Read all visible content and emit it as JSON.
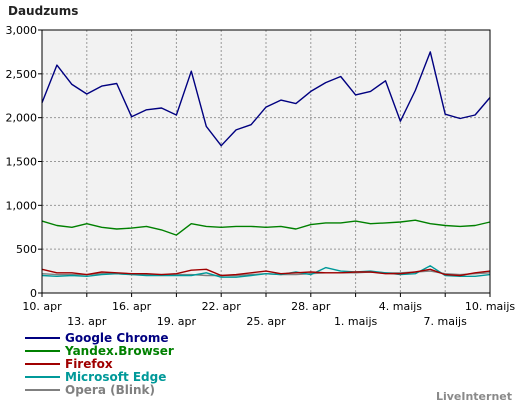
{
  "chart_data": {
    "type": "line",
    "title": "Daudzums",
    "xlabel": "",
    "ylabel": "",
    "ylim": [
      0,
      3000
    ],
    "ytick_labels": [
      "0",
      "500",
      "1,000",
      "1,500",
      "2,000",
      "2,500",
      "3,000"
    ],
    "grid": true,
    "grid_style": "dashed",
    "plot_background": "#f2f2f2",
    "legend_position": "bottom-left",
    "x": [
      "10. apr",
      "11. apr",
      "12. apr",
      "13. apr",
      "14. apr",
      "15. apr",
      "16. apr",
      "17. apr",
      "18. apr",
      "19. apr",
      "20. apr",
      "21. apr",
      "22. apr",
      "23. apr",
      "24. apr",
      "25. apr",
      "26. apr",
      "27. apr",
      "28. apr",
      "29. apr",
      "30. apr",
      "1. maijs",
      "2. maijs",
      "3. maijs",
      "4. maijs",
      "5. maijs",
      "6. maijs",
      "7. maijs",
      "8. maijs",
      "9. maijs",
      "10. maijs"
    ],
    "x_tick_labels_top_row": [
      "10. apr",
      "16. apr",
      "22. apr",
      "28. apr",
      "4. maijs",
      "10. maijs"
    ],
    "x_tick_labels_bottom_row": [
      "13. apr",
      "19. apr",
      "25. apr",
      "1. maijs",
      "7. maijs"
    ],
    "series": [
      {
        "name": "Google Chrome",
        "color": "#000080",
        "values": [
          2170,
          2600,
          2380,
          2270,
          2360,
          2390,
          2010,
          2090,
          2110,
          2030,
          2530,
          1900,
          1680,
          1860,
          1920,
          2120,
          2200,
          2160,
          2300,
          2400,
          2470,
          2260,
          2300,
          2420,
          1960,
          2310,
          2750,
          2040,
          1990,
          2030,
          2230
        ]
      },
      {
        "name": "Yandex.Browser",
        "color": "#008000",
        "values": [
          820,
          770,
          750,
          790,
          750,
          730,
          740,
          760,
          720,
          660,
          790,
          760,
          750,
          760,
          760,
          750,
          760,
          730,
          780,
          800,
          800,
          820,
          790,
          800,
          810,
          830,
          790,
          770,
          760,
          770,
          810
        ]
      },
      {
        "name": "Firefox",
        "color": "#a00000",
        "values": [
          270,
          230,
          230,
          210,
          240,
          230,
          220,
          220,
          210,
          220,
          260,
          270,
          200,
          210,
          230,
          250,
          220,
          230,
          240,
          230,
          230,
          240,
          240,
          220,
          220,
          240,
          270,
          210,
          200,
          230,
          250
        ]
      },
      {
        "name": "Microsoft Edge",
        "color": "#009999",
        "values": [
          200,
          190,
          200,
          190,
          210,
          220,
          210,
          200,
          200,
          200,
          200,
          230,
          180,
          180,
          200,
          220,
          210,
          240,
          210,
          290,
          250,
          240,
          250,
          230,
          210,
          220,
          310,
          200,
          190,
          190,
          210
        ]
      },
      {
        "name": "Opera (Blink)",
        "color": "#808080",
        "values": [
          220,
          210,
          210,
          210,
          220,
          220,
          210,
          210,
          210,
          210,
          210,
          200,
          200,
          200,
          210,
          220,
          210,
          210,
          220,
          230,
          230,
          230,
          240,
          230,
          230,
          240,
          250,
          220,
          210,
          220,
          230
        ]
      }
    ]
  },
  "footer": {
    "brand": "LiveInternet"
  }
}
